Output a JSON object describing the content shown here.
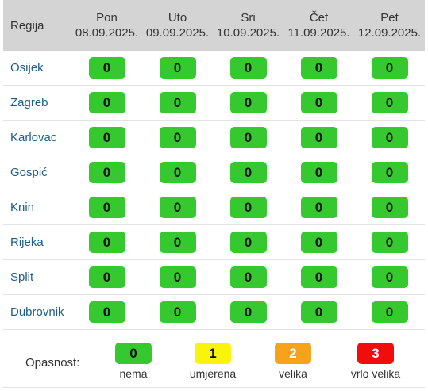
{
  "table": {
    "region_header": "Regija",
    "days": [
      {
        "day": "Pon",
        "date": "08.09.2025."
      },
      {
        "day": "Uto",
        "date": "09.09.2025."
      },
      {
        "day": "Sri",
        "date": "10.09.2025."
      },
      {
        "day": "Čet",
        "date": "11.09.2025."
      },
      {
        "day": "Pet",
        "date": "12.09.2025."
      }
    ],
    "rows": [
      {
        "region": "Osijek",
        "values": [
          "0",
          "0",
          "0",
          "0",
          "0"
        ]
      },
      {
        "region": "Zagreb",
        "values": [
          "0",
          "0",
          "0",
          "0",
          "0"
        ]
      },
      {
        "region": "Karlovac",
        "values": [
          "0",
          "0",
          "0",
          "0",
          "0"
        ]
      },
      {
        "region": "Gospić",
        "values": [
          "0",
          "0",
          "0",
          "0",
          "0"
        ]
      },
      {
        "region": "Knin",
        "values": [
          "0",
          "0",
          "0",
          "0",
          "0"
        ]
      },
      {
        "region": "Rijeka",
        "values": [
          "0",
          "0",
          "0",
          "0",
          "0"
        ]
      },
      {
        "region": "Split",
        "values": [
          "0",
          "0",
          "0",
          "0",
          "0"
        ]
      },
      {
        "region": "Dubrovnik",
        "values": [
          "0",
          "0",
          "0",
          "0",
          "0"
        ]
      }
    ]
  },
  "legend": {
    "label": "Opasnost:",
    "levels": [
      {
        "value": "0",
        "caption": "nema",
        "color": "#35c82f"
      },
      {
        "value": "1",
        "caption": "umjerena",
        "color": "#f8f40b"
      },
      {
        "value": "2",
        "caption": "velika",
        "color": "#f7a21b"
      },
      {
        "value": "3",
        "caption": "vrlo velika",
        "color": "#f20d0d"
      }
    ]
  }
}
